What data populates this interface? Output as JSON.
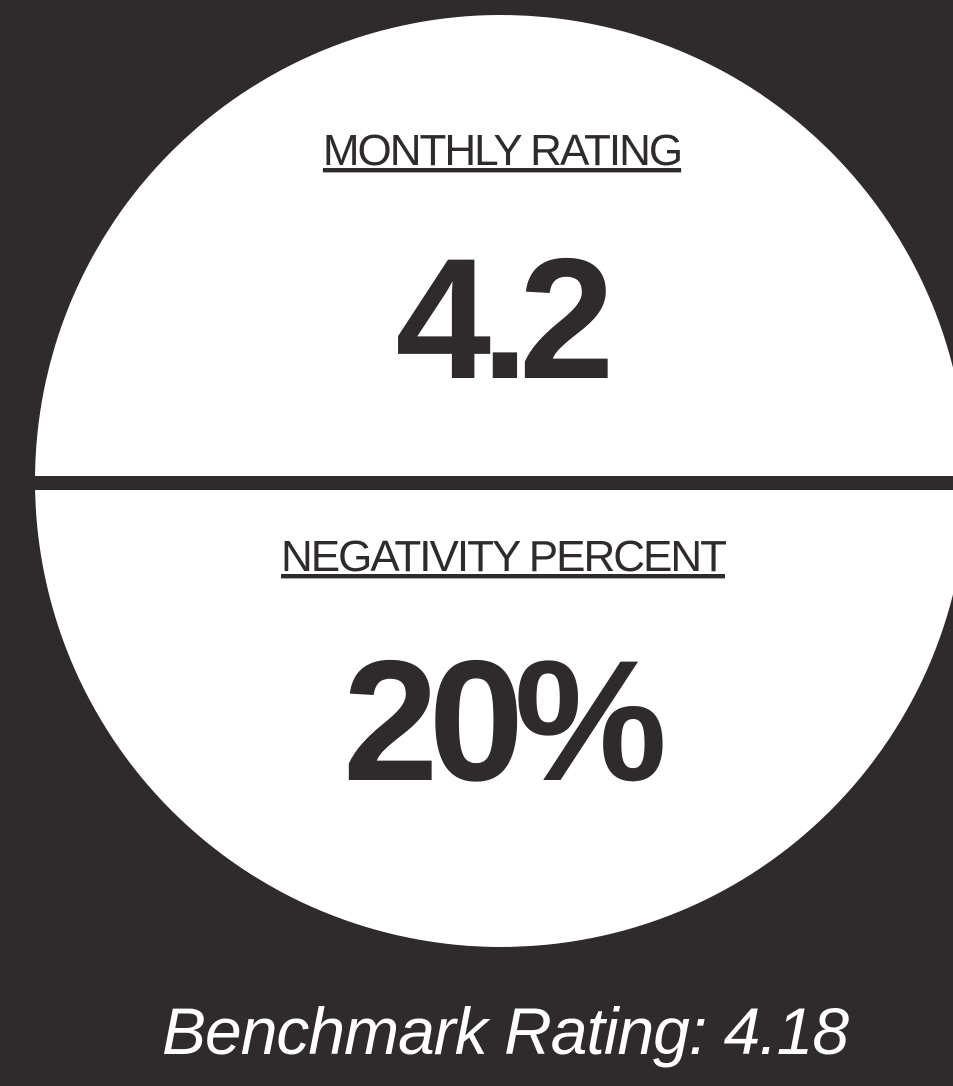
{
  "card": {
    "top_label": "MONTHLY RATING",
    "top_value": "4.2",
    "bottom_label": "NEGATIVITY PERCENT",
    "bottom_value": "20%"
  },
  "footer": "Benchmark Rating: 4.18"
}
